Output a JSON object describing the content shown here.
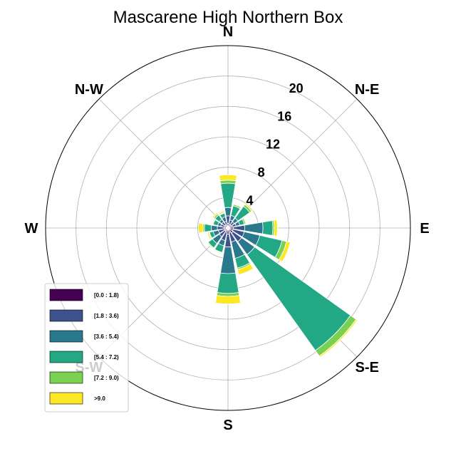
{
  "chart_data": {
    "type": "windrose",
    "title": "Mascarene High Northern Box",
    "direction_labels": [
      "N",
      "N-E",
      "E",
      "S-E",
      "S",
      "S-W",
      "W",
      "N-W"
    ],
    "r_ticks": [
      "4",
      "8",
      "12",
      "16",
      "20"
    ],
    "r_tick_values": [
      4,
      8,
      12,
      16,
      20
    ],
    "r_max": 24,
    "grid": true,
    "legend_position": "lower-left",
    "bins": [
      {
        "label": "[0.0 : 1.8)",
        "color": "#440154"
      },
      {
        "label": "[1.8 : 3.6)",
        "color": "#3b528b"
      },
      {
        "label": "[3.6 : 5.4)",
        "color": "#2a788e"
      },
      {
        "label": "[5.4 : 7.2)",
        "color": "#22a884"
      },
      {
        "label": "[7.2 : 9.0)",
        "color": "#7ad151"
      },
      {
        "label": ">9.0",
        "color": "#fde725"
      }
    ],
    "sector_count": 16,
    "sectors": [
      {
        "direction": 0,
        "values": [
          0.6,
          1.0,
          1.1,
          3.2,
          0.4,
          0.7
        ]
      },
      {
        "direction": 22.5,
        "values": [
          0.5,
          0.6,
          0.6,
          1.3,
          0.2,
          0.1
        ]
      },
      {
        "direction": 45,
        "values": [
          0.5,
          0.5,
          0.6,
          1.9,
          0.3,
          0.2
        ]
      },
      {
        "direction": 67.5,
        "values": [
          0.6,
          0.5,
          0.5,
          0.6,
          0.2,
          0.1
        ]
      },
      {
        "direction": 90,
        "values": [
          0.7,
          1.5,
          2.4,
          1.3,
          0.2,
          0.4
        ]
      },
      {
        "direction": 112.5,
        "values": [
          0.7,
          1.5,
          2.1,
          3.0,
          0.6,
          0.5
        ]
      },
      {
        "direction": 135,
        "values": [
          0.8,
          1.4,
          2.1,
          15.5,
          0.9,
          0.2
        ]
      },
      {
        "direction": 157.5,
        "values": [
          0.6,
          1.3,
          2.2,
          1.3,
          0.2,
          0.7
        ]
      },
      {
        "direction": 180,
        "values": [
          0.8,
          1.7,
          3.5,
          2.6,
          0.4,
          1.0
        ]
      },
      {
        "direction": 202.5,
        "values": [
          0.6,
          1.1,
          0.7,
          0.9,
          0.1,
          0.1
        ]
      },
      {
        "direction": 225,
        "values": [
          0.5,
          0.9,
          1.1,
          0.7,
          0.1,
          0.1
        ]
      },
      {
        "direction": 247.5,
        "values": [
          0.5,
          0.8,
          0.7,
          0.5,
          0.1,
          0.2
        ]
      },
      {
        "direction": 270,
        "values": [
          0.5,
          0.9,
          0.8,
          0.9,
          0.2,
          0.6
        ]
      },
      {
        "direction": 292.5,
        "values": [
          0.5,
          0.5,
          0.4,
          0.6,
          0.1,
          0.1
        ]
      },
      {
        "direction": 315,
        "values": [
          0.5,
          0.5,
          0.4,
          0.7,
          0.2,
          0.2
        ]
      },
      {
        "direction": 337.5,
        "values": [
          0.4,
          0.5,
          0.6,
          0.5,
          0.1,
          0.2
        ]
      }
    ]
  }
}
